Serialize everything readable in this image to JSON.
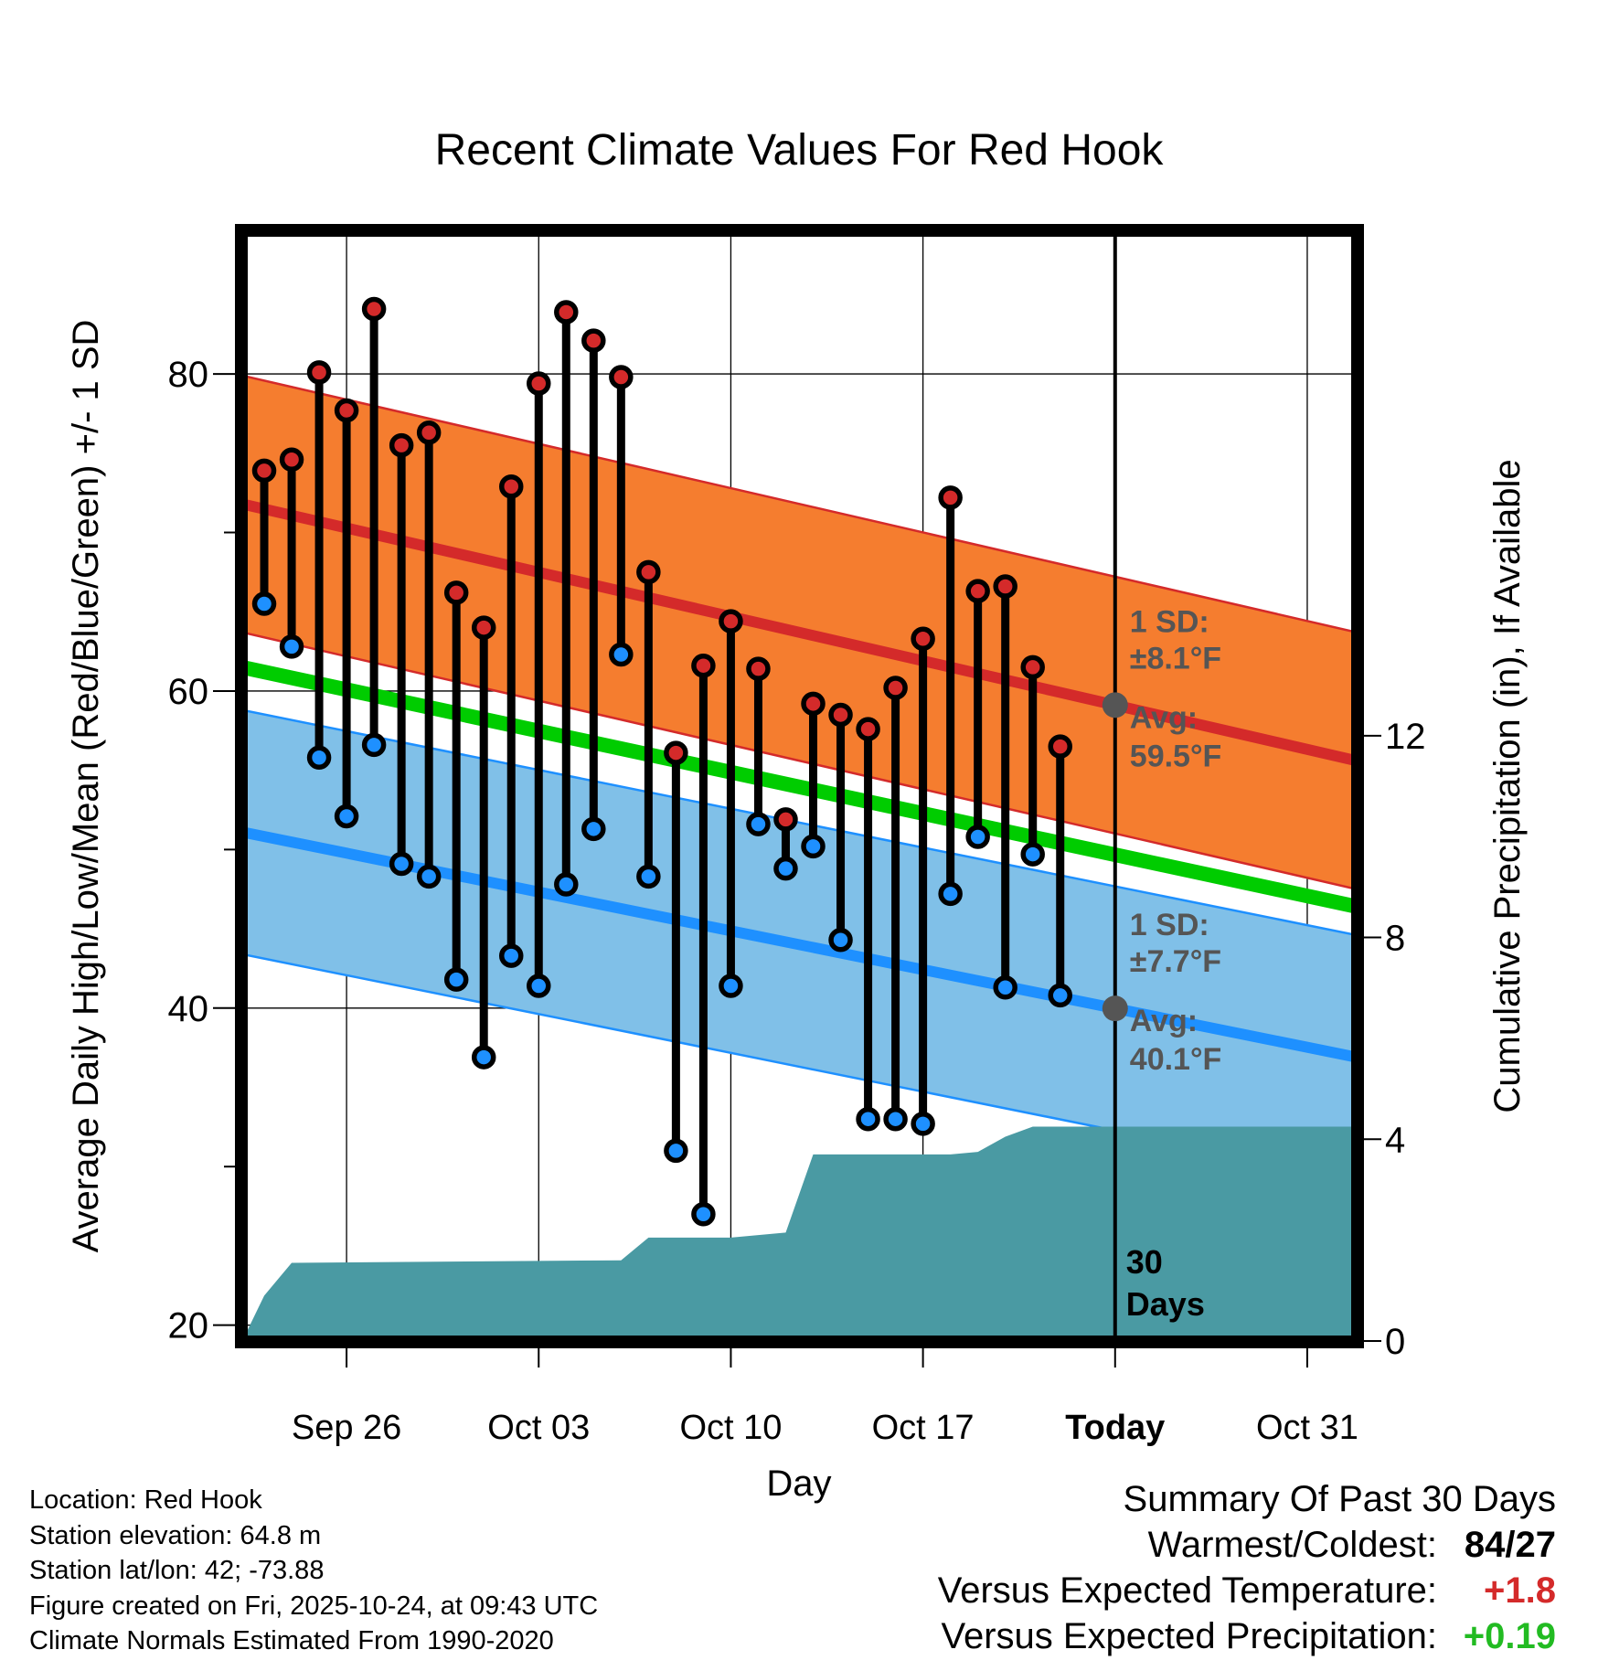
{
  "chart_data": {
    "type": "line",
    "title": "Recent Climate Values For Red Hook",
    "xlabel": "Day",
    "ylabel": "Average Daily High/Low/Mean (Red/Blue/Green) +/- 1 SD",
    "y2label": "Cumulative Precipitation (in), If Available",
    "ylim": [
      19,
      89
    ],
    "y2lim": [
      0,
      22
    ],
    "xlim": [
      -0.8,
      39.8
    ],
    "x_ticks": [
      {
        "x": 3,
        "label": "Sep 26"
      },
      {
        "x": 10,
        "label": "Oct 03"
      },
      {
        "x": 17,
        "label": "Oct 10"
      },
      {
        "x": 24,
        "label": "Oct 17"
      },
      {
        "x": 31,
        "label": "Today"
      },
      {
        "x": 38,
        "label": "Oct 31"
      }
    ],
    "y_ticks": [
      20,
      40,
      60,
      80
    ],
    "y2_ticks": [
      0,
      4,
      8,
      12
    ],
    "today_x": 31,
    "today_label": "30 Days",
    "colors": {
      "high": "#d42a2a",
      "low": "#1e90ff",
      "mean": "#00cc00",
      "high_band": "#f57d2f",
      "low_band": "#80c0e8",
      "precip": "#4a9aa3",
      "annotation": "#555555"
    },
    "normals": {
      "high_avg": [
        71.8,
        55.6
      ],
      "high_sd": 8.1,
      "low_avg": [
        51.1,
        36.9
      ],
      "low_sd": 7.7,
      "mean_avg": [
        61.5,
        46.4
      ]
    },
    "annotations": {
      "high_sd_label": "1 SD:",
      "high_sd_value": "±8.1°F",
      "high_avg_label": "Avg:",
      "high_avg_value": "59.5°F",
      "low_sd_label": "1 SD:",
      "low_sd_value": "±7.7°F",
      "low_avg_label": "Avg:",
      "low_avg_value": "40.1°F"
    },
    "highs": [
      73.9,
      74.6,
      80.1,
      77.7,
      84.1,
      75.5,
      76.3,
      66.2,
      64.0,
      72.9,
      79.4,
      83.9,
      82.1,
      79.8,
      67.5,
      56.1,
      61.6,
      64.4,
      61.4,
      51.9,
      59.2,
      58.5,
      57.6,
      60.2,
      63.3,
      72.2,
      66.3,
      66.6,
      61.5,
      56.5
    ],
    "lows": [
      65.5,
      62.8,
      55.8,
      52.1,
      56.6,
      49.1,
      48.3,
      41.8,
      36.9,
      43.3,
      41.4,
      47.8,
      51.3,
      62.3,
      48.3,
      31.0,
      27.0,
      41.4,
      51.6,
      48.8,
      50.2,
      44.3,
      33.0,
      33.0,
      32.7,
      47.2,
      50.8,
      41.3,
      49.7,
      40.8
    ],
    "precip_x": [
      -0.8,
      0,
      1,
      13,
      14,
      17,
      18,
      19,
      20,
      21,
      22,
      23,
      24,
      25,
      26,
      27,
      28,
      29,
      30,
      31,
      39.8
    ],
    "precip_cum": [
      0,
      0.9,
      1.55,
      1.6,
      2.05,
      2.05,
      2.1,
      2.15,
      3.7,
      3.7,
      3.7,
      3.7,
      3.7,
      3.7,
      3.75,
      4.05,
      4.25,
      4.25,
      4.25,
      4.25,
      4.25
    ]
  },
  "meta": {
    "location": "Location: Red Hook",
    "elevation": "Station elevation: 64.8 m",
    "latlon": "Station lat/lon: 42; -73.88",
    "created": "Figure created on Fri, 2025-10-24, at 09:43 UTC",
    "normals": "Climate Normals Estimated From 1990-2020"
  },
  "summary": {
    "title": "Summary Of Past 30 Days",
    "warmest_label": "Warmest/Coldest:",
    "warmest_value": "84/27",
    "temp_label": "Versus Expected Temperature:",
    "temp_value": "+1.8",
    "temp_color": "#d42a2a",
    "precip_label": "Versus Expected Precipitation:",
    "precip_value": "+0.19",
    "precip_color": "#22bb22"
  }
}
